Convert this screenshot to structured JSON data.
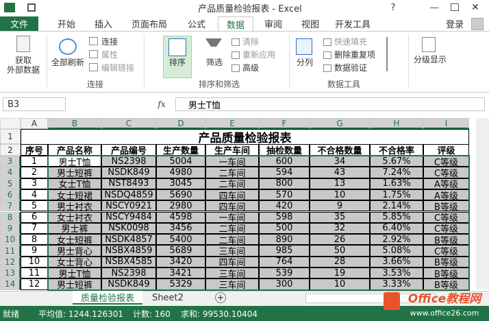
{
  "title_bar": {
    "title": "产品质量检验报表 - Excel",
    "help": "?"
  },
  "tabs": [
    "文件",
    "开始",
    "插入",
    "页面布局",
    "公式",
    "数据",
    "审阅",
    "视图",
    "开发工具"
  ],
  "login": "登录",
  "ribbon": {
    "get_external": [
      "获取",
      "外部数据"
    ],
    "refresh_all": "全部刷新",
    "connections": [
      "连接",
      "属性",
      "编辑链接"
    ],
    "connections_label": "连接",
    "sort": "排序",
    "filter": "筛选",
    "filter_items": [
      "清除",
      "重新应用",
      "高级"
    ],
    "sort_filter_label": "排序和筛选",
    "text_to_columns": "分列",
    "data_tools_items": [
      "快速填充",
      "删除重复项",
      "数据验证"
    ],
    "data_tools_label": "数据工具",
    "outline": "分级显示"
  },
  "formula_bar": {
    "name_box": "B3",
    "fx": "fx",
    "formula": "男士T恤"
  },
  "columns": [
    "A",
    "B",
    "C",
    "D",
    "E",
    "F",
    "G",
    "H",
    "I"
  ],
  "row_numbers": [
    1,
    2,
    3,
    4,
    5,
    6,
    7,
    8,
    9,
    10,
    11,
    12,
    13,
    14
  ],
  "sheet": {
    "title": "产品质量检验报表",
    "header": [
      "序号",
      "产品名称",
      "产品编号",
      "生产数量",
      "生产车间",
      "抽检数量",
      "不合格数量",
      "不合格率",
      "评级"
    ],
    "rows": [
      [
        "1",
        "男士T恤",
        "NS2398",
        "5004",
        "一车间",
        "600",
        "34",
        "5.67%",
        "C等级"
      ],
      [
        "2",
        "男士短裤",
        "NSDK849",
        "4980",
        "二车间",
        "594",
        "43",
        "7.24%",
        "C等级"
      ],
      [
        "3",
        "女士T恤",
        "NST8493",
        "3045",
        "二车间",
        "800",
        "13",
        "1.63%",
        "A等级"
      ],
      [
        "4",
        "女士短裙",
        "NSDQ4859",
        "5690",
        "四车间",
        "570",
        "10",
        "1.75%",
        "A等级"
      ],
      [
        "5",
        "男士衬衣",
        "NSCY0921",
        "2980",
        "四车间",
        "420",
        "9",
        "2.14%",
        "B等级"
      ],
      [
        "6",
        "女士衬衣",
        "NSCY9484",
        "4598",
        "一车间",
        "598",
        "35",
        "5.85%",
        "C等级"
      ],
      [
        "7",
        "男士裤",
        "NSK0098",
        "3456",
        "二车间",
        "500",
        "32",
        "6.40%",
        "C等级"
      ],
      [
        "8",
        "女士短裤",
        "NSDK4857",
        "5400",
        "二车间",
        "890",
        "26",
        "2.92%",
        "B等级"
      ],
      [
        "9",
        "男士背心",
        "NSBX4859",
        "5689",
        "三车间",
        "985",
        "50",
        "5.08%",
        "C等级"
      ],
      [
        "10",
        "女士背心",
        "NSBX4585",
        "3420",
        "四车间",
        "764",
        "28",
        "3.66%",
        "B等级"
      ],
      [
        "11",
        "男士T恤",
        "NS2398",
        "3421",
        "三车间",
        "539",
        "19",
        "3.53%",
        "B等级"
      ],
      [
        "12",
        "男士短裤",
        "NSDK849",
        "5329",
        "三车间",
        "300",
        "10",
        "3.33%",
        "B等级"
      ]
    ]
  },
  "sheet_tabs": [
    "质量检验报表",
    "Sheet2"
  ],
  "status_bar": {
    "ready": "就绪",
    "average": "平均值: 1244.126301",
    "count": "计数: 160",
    "sum": "求和: 99530.10404"
  },
  "watermark": {
    "brand": "Office教程网",
    "url": "www.office26.com"
  }
}
